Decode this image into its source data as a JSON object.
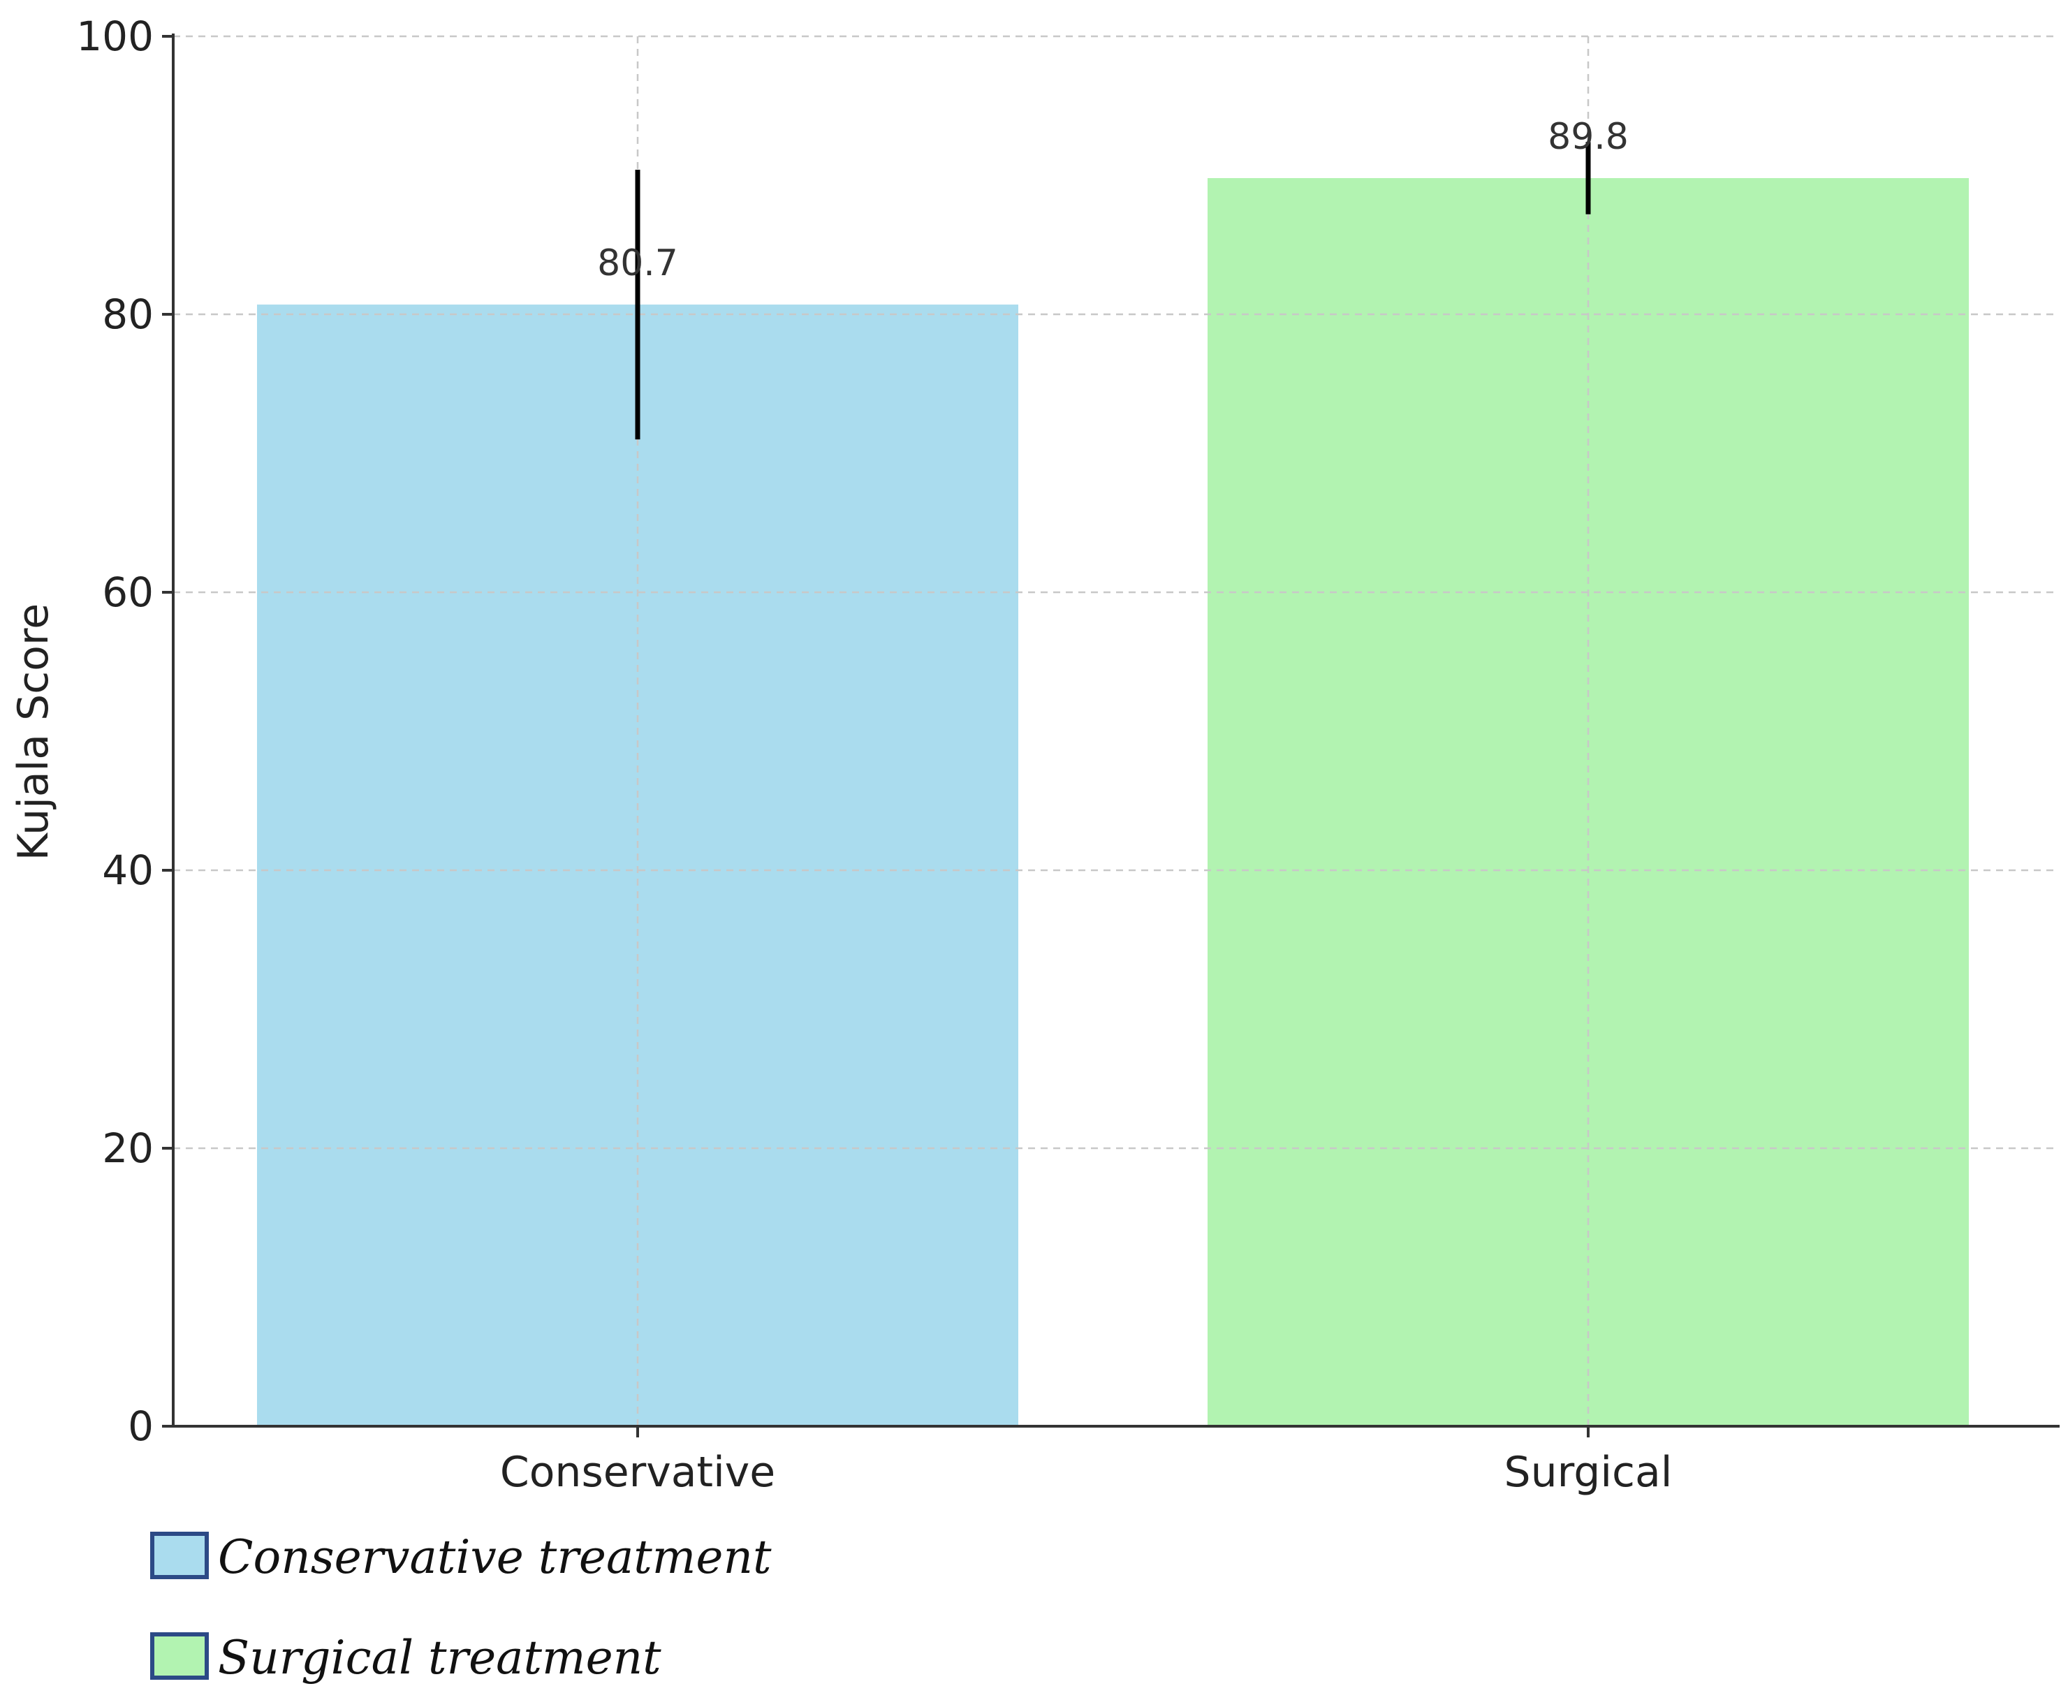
{
  "chart_data": {
    "type": "bar",
    "categories": [
      "Conservative",
      "Surgical"
    ],
    "values": [
      80.7,
      89.8
    ],
    "error_bars": [
      9.7,
      2.6
    ],
    "data_labels": [
      "80.7",
      "89.8"
    ],
    "colors": [
      "#aadcee",
      "#b2f3b1"
    ],
    "title": "",
    "xlabel": "",
    "ylabel": "Kujala Score",
    "ylim": [
      0,
      100
    ],
    "yticks": [
      0,
      20,
      40,
      60,
      80,
      100
    ],
    "grid": true,
    "legend": {
      "placement": "bottom-left",
      "items": [
        {
          "label": "Conservative treatment",
          "color": "#aadcee"
        },
        {
          "label": "Surgical treatment",
          "color": "#b2f3b1"
        }
      ],
      "swatch_border": "#2c4a86"
    }
  }
}
